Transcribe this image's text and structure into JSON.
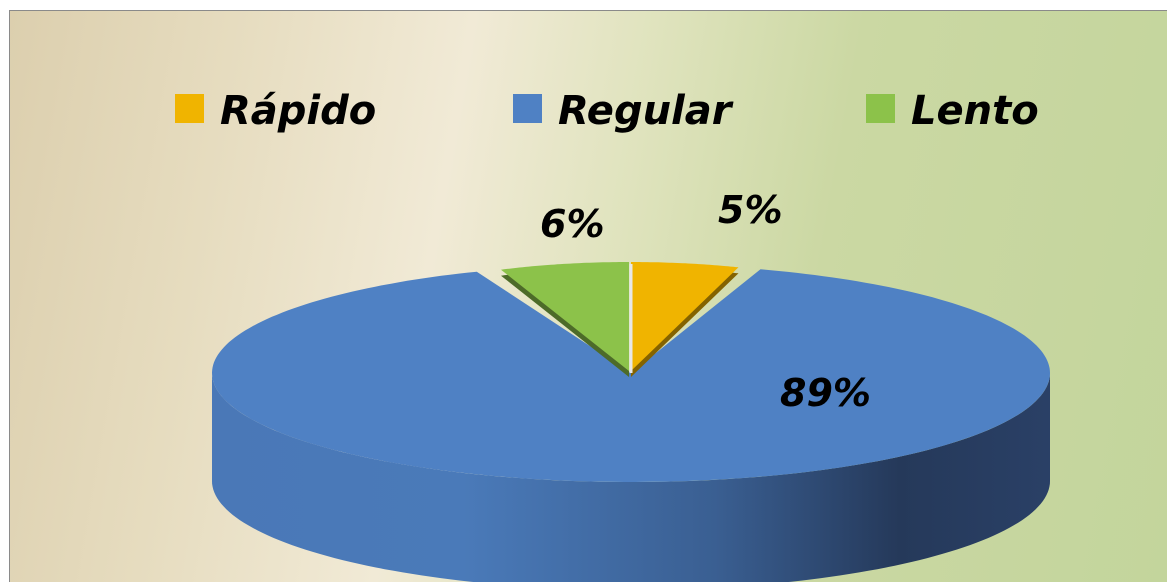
{
  "chart_data": {
    "type": "pie",
    "style": "3d",
    "legend_position": "top",
    "categories": [
      "Rápido",
      "Regular",
      "Lento"
    ],
    "values": [
      5,
      89,
      6
    ],
    "labels": [
      "5%",
      "89%",
      "6%"
    ],
    "colors": [
      "#f0b400",
      "#4f81c4",
      "#8cc24a"
    ],
    "exploded": [
      "Rápido",
      "Lento"
    ]
  }
}
